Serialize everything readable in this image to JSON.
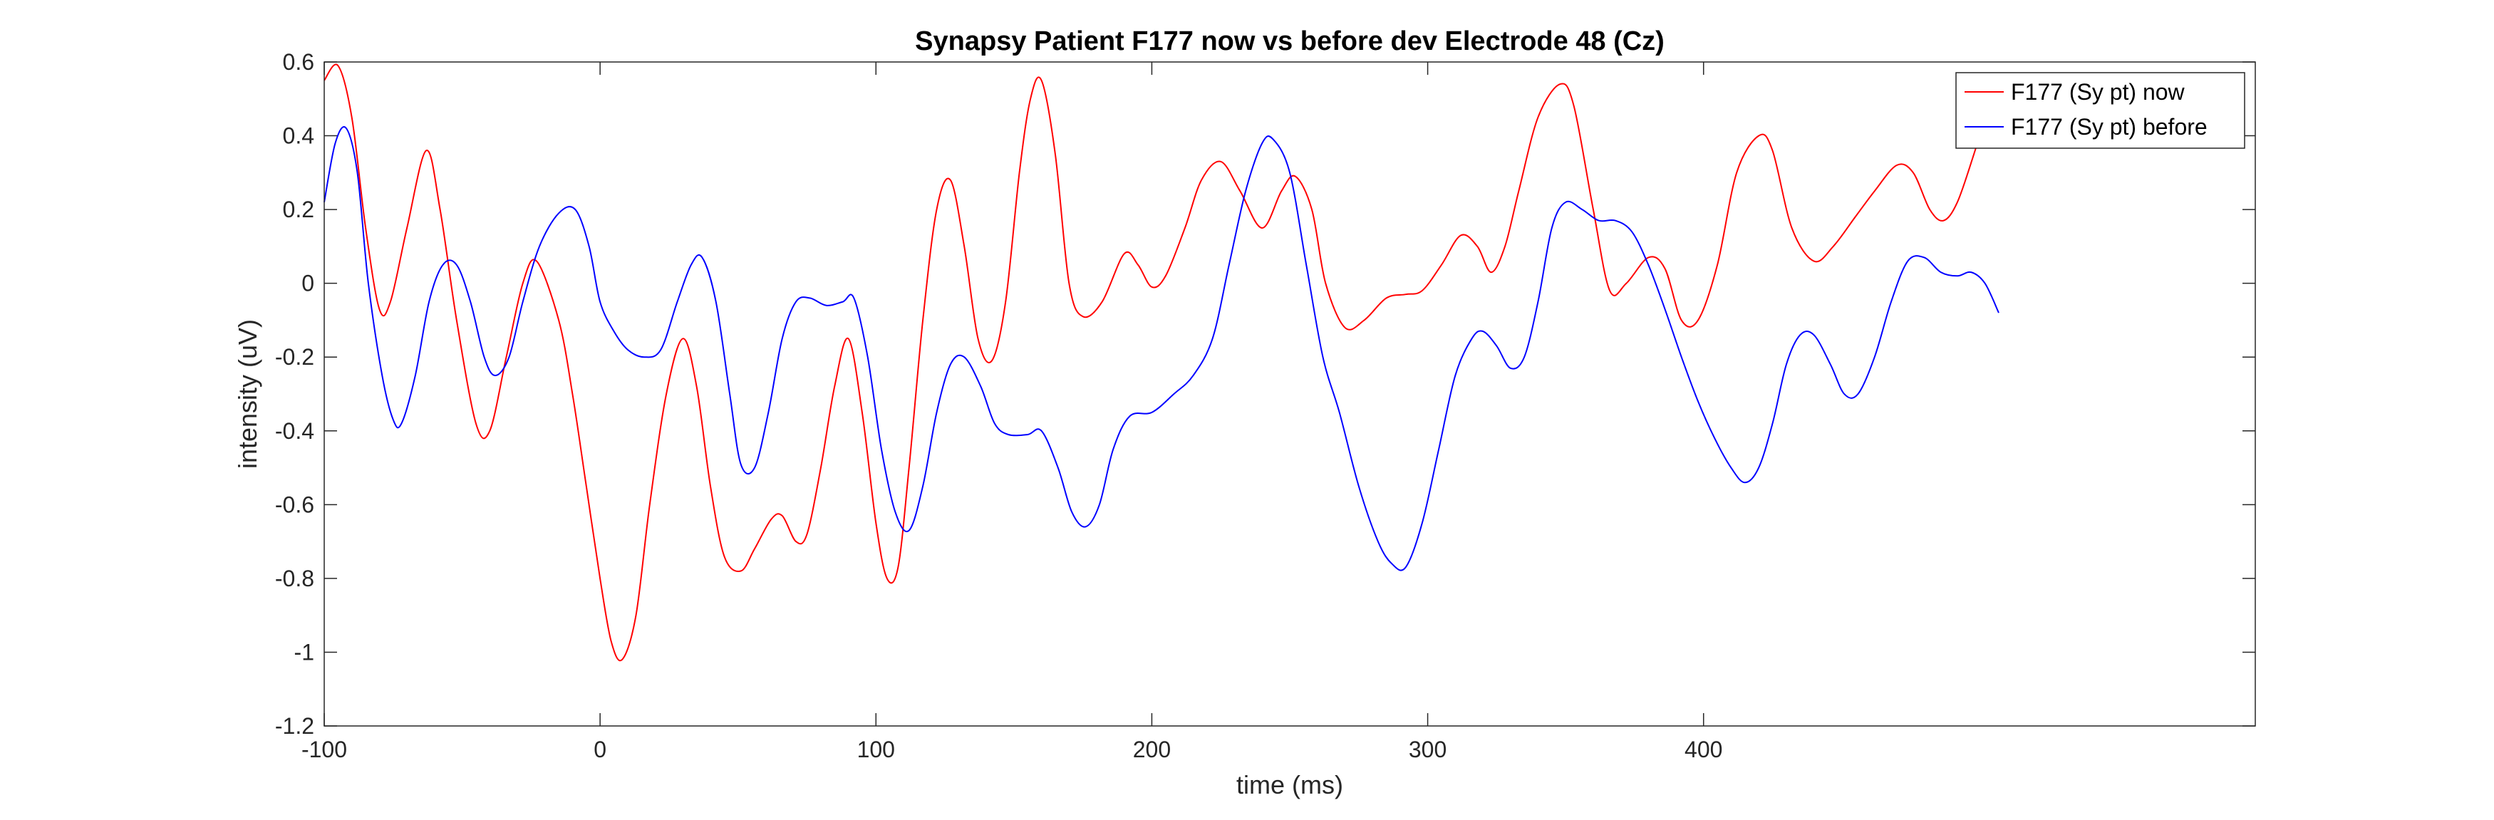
{
  "chart_data": {
    "type": "line",
    "title": "Synapsy Patient F177 now vs before dev Electrode 48 (Cz)",
    "xlabel": "time (ms)",
    "ylabel": "intensity (uV)",
    "xlim": [
      -100,
      600
    ],
    "ylim": [
      -1.2,
      0.6
    ],
    "xticks": [
      -100,
      0,
      100,
      200,
      300,
      400
    ],
    "yticks": [
      -1.2,
      -1,
      -0.8,
      -0.6,
      -0.4,
      -0.2,
      0,
      0.2,
      0.4,
      0.6
    ],
    "yticklabels": [
      "-1.2",
      "-1",
      "-0.8",
      "-0.6",
      "-0.4",
      "-0.2",
      "0",
      "0.2",
      "0.4",
      "0.6"
    ],
    "grid": false,
    "legend_position": "top-right",
    "series": [
      {
        "name": "F177 (Sy pt) now",
        "color": "#ff0000",
        "points": [
          [
            -100,
            0.55
          ],
          [
            -95,
            0.59
          ],
          [
            -90,
            0.45
          ],
          [
            -85,
            0.15
          ],
          [
            -80,
            -0.07
          ],
          [
            -76,
            -0.05
          ],
          [
            -70,
            0.15
          ],
          [
            -63,
            0.36
          ],
          [
            -58,
            0.2
          ],
          [
            -52,
            -0.1
          ],
          [
            -45,
            -0.38
          ],
          [
            -40,
            -0.4
          ],
          [
            -34,
            -0.2
          ],
          [
            -28,
            0.0
          ],
          [
            -23,
            0.06
          ],
          [
            -15,
            -0.1
          ],
          [
            -10,
            -0.3
          ],
          [
            -5,
            -0.55
          ],
          [
            0,
            -0.8
          ],
          [
            4,
            -0.97
          ],
          [
            8,
            -1.02
          ],
          [
            13,
            -0.9
          ],
          [
            18,
            -0.6
          ],
          [
            24,
            -0.3
          ],
          [
            30,
            -0.15
          ],
          [
            35,
            -0.28
          ],
          [
            40,
            -0.55
          ],
          [
            45,
            -0.74
          ],
          [
            51,
            -0.78
          ],
          [
            56,
            -0.72
          ],
          [
            62,
            -0.64
          ],
          [
            66,
            -0.63
          ],
          [
            71,
            -0.7
          ],
          [
            75,
            -0.68
          ],
          [
            80,
            -0.5
          ],
          [
            85,
            -0.28
          ],
          [
            90,
            -0.15
          ],
          [
            95,
            -0.35
          ],
          [
            100,
            -0.65
          ],
          [
            104,
            -0.8
          ],
          [
            108,
            -0.77
          ],
          [
            112,
            -0.5
          ],
          [
            117,
            -0.1
          ],
          [
            122,
            0.2
          ],
          [
            127,
            0.28
          ],
          [
            132,
            0.1
          ],
          [
            137,
            -0.15
          ],
          [
            142,
            -0.21
          ],
          [
            147,
            -0.05
          ],
          [
            152,
            0.3
          ],
          [
            156,
            0.5
          ],
          [
            160,
            0.55
          ],
          [
            165,
            0.35
          ],
          [
            170,
            0.0
          ],
          [
            175,
            -0.09
          ],
          [
            182,
            -0.05
          ],
          [
            190,
            0.08
          ],
          [
            195,
            0.05
          ],
          [
            200,
            -0.01
          ],
          [
            205,
            0.02
          ],
          [
            212,
            0.15
          ],
          [
            218,
            0.28
          ],
          [
            225,
            0.33
          ],
          [
            232,
            0.25
          ],
          [
            240,
            0.15
          ],
          [
            247,
            0.25
          ],
          [
            252,
            0.29
          ],
          [
            258,
            0.2
          ],
          [
            263,
            0.0
          ],
          [
            270,
            -0.12
          ],
          [
            277,
            -0.1
          ],
          [
            285,
            -0.04
          ],
          [
            292,
            -0.03
          ],
          [
            298,
            -0.02
          ],
          [
            305,
            0.05
          ],
          [
            312,
            0.13
          ],
          [
            318,
            0.1
          ],
          [
            323,
            0.03
          ],
          [
            328,
            0.1
          ],
          [
            333,
            0.25
          ],
          [
            340,
            0.45
          ],
          [
            348,
            0.54
          ],
          [
            353,
            0.48
          ],
          [
            360,
            0.2
          ],
          [
            366,
            -0.02
          ],
          [
            372,
            0.0
          ],
          [
            380,
            0.07
          ],
          [
            386,
            0.04
          ],
          [
            392,
            -0.1
          ],
          [
            398,
            -0.1
          ],
          [
            405,
            0.05
          ],
          [
            412,
            0.3
          ],
          [
            420,
            0.4
          ],
          [
            425,
            0.36
          ],
          [
            432,
            0.15
          ],
          [
            440,
            0.06
          ],
          [
            447,
            0.1
          ],
          [
            455,
            0.18
          ],
          [
            462,
            0.25
          ],
          [
            470,
            0.32
          ],
          [
            476,
            0.3
          ],
          [
            482,
            0.2
          ],
          [
            487,
            0.17
          ],
          [
            492,
            0.22
          ],
          [
            498,
            0.35
          ],
          [
            500,
            0.4
          ]
        ]
      },
      {
        "name": "F177 (Sy pt) before",
        "color": "#0000ff",
        "points": [
          [
            -100,
            0.22
          ],
          [
            -96,
            0.38
          ],
          [
            -92,
            0.42
          ],
          [
            -88,
            0.3
          ],
          [
            -84,
            0.0
          ],
          [
            -79,
            -0.25
          ],
          [
            -75,
            -0.37
          ],
          [
            -72,
            -0.38
          ],
          [
            -67,
            -0.25
          ],
          [
            -62,
            -0.05
          ],
          [
            -57,
            0.05
          ],
          [
            -52,
            0.05
          ],
          [
            -47,
            -0.05
          ],
          [
            -42,
            -0.2
          ],
          [
            -38,
            -0.25
          ],
          [
            -33,
            -0.2
          ],
          [
            -28,
            -0.05
          ],
          [
            -22,
            0.1
          ],
          [
            -15,
            0.19
          ],
          [
            -9,
            0.2
          ],
          [
            -4,
            0.1
          ],
          [
            0,
            -0.05
          ],
          [
            5,
            -0.13
          ],
          [
            10,
            -0.18
          ],
          [
            16,
            -0.2
          ],
          [
            22,
            -0.18
          ],
          [
            28,
            -0.05
          ],
          [
            33,
            0.05
          ],
          [
            37,
            0.07
          ],
          [
            42,
            -0.05
          ],
          [
            47,
            -0.3
          ],
          [
            51,
            -0.49
          ],
          [
            56,
            -0.5
          ],
          [
            61,
            -0.35
          ],
          [
            66,
            -0.15
          ],
          [
            71,
            -0.05
          ],
          [
            76,
            -0.04
          ],
          [
            82,
            -0.06
          ],
          [
            88,
            -0.05
          ],
          [
            92,
            -0.04
          ],
          [
            97,
            -0.2
          ],
          [
            102,
            -0.45
          ],
          [
            107,
            -0.62
          ],
          [
            112,
            -0.67
          ],
          [
            117,
            -0.55
          ],
          [
            122,
            -0.35
          ],
          [
            127,
            -0.22
          ],
          [
            132,
            -0.2
          ],
          [
            138,
            -0.28
          ],
          [
            143,
            -0.38
          ],
          [
            148,
            -0.41
          ],
          [
            155,
            -0.41
          ],
          [
            160,
            -0.4
          ],
          [
            166,
            -0.5
          ],
          [
            171,
            -0.62
          ],
          [
            176,
            -0.66
          ],
          [
            181,
            -0.6
          ],
          [
            186,
            -0.45
          ],
          [
            192,
            -0.36
          ],
          [
            200,
            -0.35
          ],
          [
            208,
            -0.3
          ],
          [
            215,
            -0.25
          ],
          [
            222,
            -0.15
          ],
          [
            228,
            0.05
          ],
          [
            234,
            0.25
          ],
          [
            240,
            0.38
          ],
          [
            244,
            0.39
          ],
          [
            250,
            0.3
          ],
          [
            256,
            0.05
          ],
          [
            262,
            -0.2
          ],
          [
            268,
            -0.35
          ],
          [
            275,
            -0.55
          ],
          [
            282,
            -0.7
          ],
          [
            287,
            -0.76
          ],
          [
            292,
            -0.77
          ],
          [
            298,
            -0.65
          ],
          [
            304,
            -0.45
          ],
          [
            310,
            -0.25
          ],
          [
            316,
            -0.15
          ],
          [
            320,
            -0.13
          ],
          [
            325,
            -0.17
          ],
          [
            330,
            -0.23
          ],
          [
            335,
            -0.2
          ],
          [
            340,
            -0.05
          ],
          [
            345,
            0.15
          ],
          [
            350,
            0.22
          ],
          [
            356,
            0.2
          ],
          [
            362,
            0.17
          ],
          [
            368,
            0.17
          ],
          [
            374,
            0.14
          ],
          [
            380,
            0.05
          ],
          [
            386,
            -0.07
          ],
          [
            392,
            -0.2
          ],
          [
            398,
            -0.32
          ],
          [
            404,
            -0.42
          ],
          [
            410,
            -0.5
          ],
          [
            415,
            -0.54
          ],
          [
            420,
            -0.5
          ],
          [
            425,
            -0.38
          ],
          [
            430,
            -0.22
          ],
          [
            435,
            -0.14
          ],
          [
            440,
            -0.14
          ],
          [
            446,
            -0.22
          ],
          [
            451,
            -0.3
          ],
          [
            456,
            -0.3
          ],
          [
            462,
            -0.2
          ],
          [
            468,
            -0.05
          ],
          [
            474,
            0.06
          ],
          [
            480,
            0.07
          ],
          [
            486,
            0.03
          ],
          [
            492,
            0.02
          ],
          [
            497,
            0.03
          ],
          [
            502,
            0.0
          ],
          [
            507,
            -0.08
          ]
        ]
      }
    ]
  }
}
